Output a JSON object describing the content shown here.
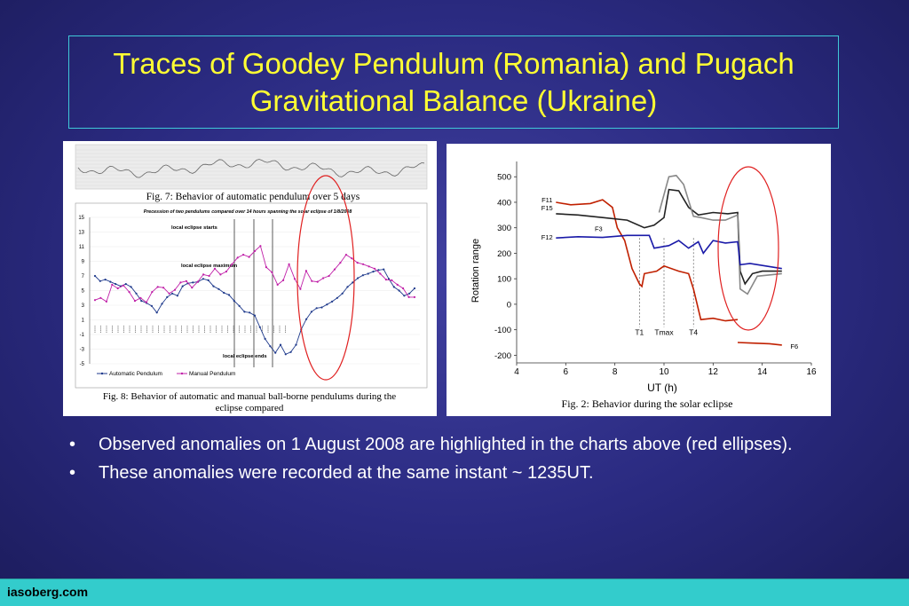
{
  "slide": {
    "title": "Traces of Goodey Pendulum (Romania) and Pugach Gravitational Balance (Ukraine)",
    "bullets": [
      "Observed anomalies on 1 August 2008 are highlighted in the charts above (red ellipses).",
      "These anomalies were recorded at the same instant ~ 1235UT."
    ],
    "bullet_symbol": "•",
    "footer": "iasoberg.com"
  },
  "chart_data": [
    {
      "type": "line",
      "caption": "Fig. 7: Behavior of automatic pendulum over 5 days"
    },
    {
      "type": "line",
      "title": "Precession of two pendulums compared over 14 hours spanning the solar eclipse of 1/8/2008",
      "caption": "Fig. 8: Behavior of automatic and manual ball-borne pendulums during the eclipse compared",
      "ylim": [
        -5,
        15
      ],
      "y_ticks": [
        "15",
        "13",
        "11",
        "9",
        "7",
        "5",
        "3",
        "1",
        "-1",
        "-3",
        "-5"
      ],
      "annotations": [
        "local eclipse starts",
        "local eclipse maximum",
        "local eclipse ends"
      ],
      "legend": [
        "Automatic Pendulum",
        "Manual Pendulum"
      ],
      "series": [
        {
          "name": "Automatic Pendulum",
          "color": "#1f3a8c",
          "values": [
            7,
            6.3,
            6.5,
            6.2,
            5.9,
            5.6,
            5.9,
            5.5,
            4.6,
            3.6,
            3.3,
            2.9,
            2,
            3.2,
            4.1,
            4.6,
            4.3,
            5.6,
            6,
            6.1,
            6.2,
            6.6,
            6.4,
            5.6,
            5.2,
            4.7,
            4.4,
            3.6,
            2.9,
            2.1,
            2,
            1.6,
            0,
            -1.6,
            -2.6,
            -3.5,
            -2.4,
            -3.7,
            -3.4,
            -2.4,
            -0.3,
            1.1,
            2.1,
            2.6,
            2.7,
            3.1,
            3.5,
            4,
            4.6,
            5.5,
            6.1,
            6.7,
            7.1,
            7.3,
            7.6,
            7.8,
            7.9,
            6.6,
            5.5,
            5,
            4.3,
            4.6,
            5.3
          ]
        },
        {
          "name": "Manual Pendulum",
          "color": "#c020a8",
          "values": [
            3.7,
            4,
            3.5,
            5.8,
            5.3,
            5.7,
            4.8,
            3.6,
            4,
            3.4,
            4.8,
            5.5,
            5.4,
            4.6,
            5.1,
            6.1,
            6.3,
            5.4,
            6.2,
            7.2,
            7,
            8,
            7.2,
            7.6,
            8.6,
            9.5,
            9.9,
            9.6,
            10.4,
            11.1,
            8.2,
            7.5,
            5.8,
            6.4,
            8.6,
            6.6,
            5.2,
            7.7,
            6.3,
            6.2,
            6.7,
            7,
            7.9,
            8.8,
            9.9,
            9.4,
            8.8,
            8.6,
            8.3,
            8,
            7.3,
            6.5,
            6.4,
            5.8,
            5.3,
            4.1,
            4.1
          ]
        }
      ]
    },
    {
      "type": "line",
      "caption": "Fig. 2: Behavior during the solar eclipse",
      "xlabel": "UT (h)",
      "ylabel": "Rotation range",
      "xlim": [
        4,
        16
      ],
      "ylim": [
        -230,
        560
      ],
      "x_ticks": [
        4,
        6,
        8,
        10,
        12,
        14,
        16
      ],
      "y_ticks": [
        500,
        400,
        300,
        200,
        100,
        0,
        -100,
        -200
      ],
      "markers": [
        {
          "label": "T1",
          "x": 9.0
        },
        {
          "label": "Tmax",
          "x": 10.0
        },
        {
          "label": "T4",
          "x": 11.2
        }
      ],
      "series": [
        {
          "name": "F11",
          "color": "#c02000",
          "points": [
            [
              5.6,
              400
            ],
            [
              6.2,
              390
            ],
            [
              7,
              395
            ],
            [
              7.5,
              410
            ],
            [
              7.9,
              380
            ],
            [
              8.1,
              300
            ],
            [
              8.4,
              250
            ],
            [
              8.7,
              140
            ],
            [
              9.0,
              80
            ],
            [
              9.1,
              70
            ],
            [
              9.2,
              120
            ],
            [
              9.7,
              130
            ],
            [
              10,
              150
            ],
            [
              10.6,
              130
            ],
            [
              11,
              120
            ],
            [
              11.2,
              60
            ],
            [
              11.5,
              -60
            ],
            [
              12,
              -55
            ],
            [
              12.5,
              -65
            ],
            [
              13,
              -60
            ]
          ]
        },
        {
          "name": "F15",
          "color": "#222222",
          "points": [
            [
              5.6,
              355
            ],
            [
              6.5,
              350
            ],
            [
              7.5,
              340
            ],
            [
              8.5,
              330
            ],
            [
              9.2,
              300
            ],
            [
              9.6,
              310
            ],
            [
              10.0,
              340
            ],
            [
              10.2,
              450
            ],
            [
              10.6,
              445
            ],
            [
              11.0,
              380
            ],
            [
              11.4,
              350
            ],
            [
              12.0,
              360
            ],
            [
              12.6,
              355
            ],
            [
              13.0,
              360
            ],
            [
              13.1,
              130
            ],
            [
              13.3,
              80
            ],
            [
              13.6,
              120
            ],
            [
              14.0,
              130
            ],
            [
              14.8,
              130
            ]
          ]
        },
        {
          "name": "F3",
          "color": "#888888",
          "points": [
            [
              9.8,
              360
            ],
            [
              10.2,
              500
            ],
            [
              10.5,
              505
            ],
            [
              10.8,
              470
            ],
            [
              11.2,
              345
            ],
            [
              11.5,
              340
            ],
            [
              12,
              330
            ],
            [
              12.5,
              330
            ],
            [
              13,
              350
            ],
            [
              13.1,
              60
            ],
            [
              13.4,
              40
            ],
            [
              13.8,
              110
            ],
            [
              14.8,
              120
            ]
          ]
        },
        {
          "name": "F12",
          "color": "#1a1aa8",
          "points": [
            [
              5.6,
              260
            ],
            [
              6.5,
              265
            ],
            [
              7.5,
              262
            ],
            [
              8.5,
              270
            ],
            [
              9.4,
              270
            ],
            [
              9.6,
              220
            ],
            [
              10.2,
              230
            ],
            [
              10.6,
              250
            ],
            [
              11.0,
              220
            ],
            [
              11.4,
              245
            ],
            [
              11.6,
              200
            ],
            [
              12.0,
              250
            ],
            [
              12.5,
              240
            ],
            [
              13.0,
              245
            ],
            [
              13.1,
              155
            ],
            [
              13.5,
              160
            ],
            [
              14.8,
              140
            ]
          ]
        },
        {
          "name": "F6",
          "color": "#c02000",
          "points": [
            [
              13.0,
              -150
            ],
            [
              13.5,
              -152
            ],
            [
              14.3,
              -155
            ],
            [
              14.8,
              -160
            ]
          ]
        }
      ],
      "series_labels": [
        "F11",
        "F15",
        "F3",
        "F12",
        "F6"
      ]
    }
  ]
}
